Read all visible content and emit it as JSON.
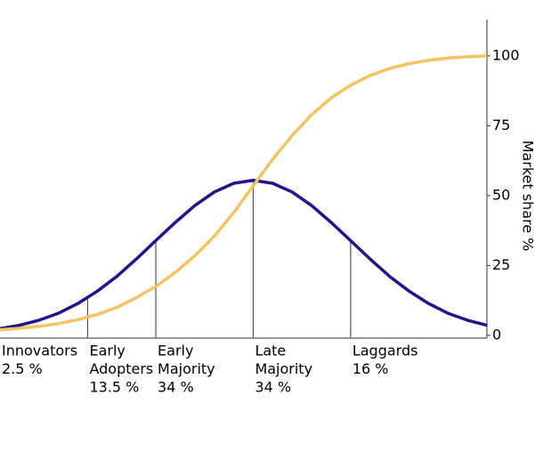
{
  "chart_data": {
    "type": "line",
    "y_label": "Market share %",
    "x": [
      -2.6,
      -2.4,
      -2.2,
      -2.0,
      -1.8,
      -1.6,
      -1.4,
      -1.2,
      -1.0,
      -0.8,
      -0.6,
      -0.4,
      -0.2,
      0,
      0.2,
      0.4,
      0.6,
      0.8,
      1.0,
      1.2,
      1.4,
      1.6,
      1.8,
      2.0,
      2.2,
      2.4
    ],
    "xlim": [
      -2.6,
      2.4
    ],
    "series": [
      {
        "color": "#23138f",
        "values": [
          2.4,
          3.6,
          5.4,
          7.9,
          11.4,
          15.8,
          21.1,
          27.3,
          33.9,
          40.4,
          46.4,
          51.3,
          54.4,
          55.5,
          54.4,
          51.3,
          46.4,
          40.4,
          33.9,
          27.3,
          21.1,
          15.8,
          11.4,
          7.9,
          5.4,
          3.6
        ]
      },
      {
        "color": "#f3c461",
        "values": [
          2,
          2.5,
          3.2,
          4.2,
          5.6,
          7.5,
          10,
          13.5,
          17.5,
          22.5,
          28.5,
          35.5,
          44,
          53.5,
          63,
          71.5,
          79,
          85,
          89.5,
          93,
          95.5,
          97.2,
          98.4,
          99.2,
          99.7,
          100
        ]
      }
    ],
    "ylim": [
      -1,
      113
    ],
    "yticks": [
      0,
      25,
      50,
      75,
      100
    ],
    "dividers": [
      -1.7,
      -1,
      0,
      1
    ],
    "segments": [
      {
        "label": [
          "Innovators"
        ],
        "share": "2.5 %"
      },
      {
        "label": [
          "Early",
          "Adopters"
        ],
        "share": "13.5 %"
      },
      {
        "label": [
          "Early",
          "Majority"
        ],
        "share": "34 %"
      },
      {
        "label": [
          "Late",
          "Majority"
        ],
        "share": "34 %"
      },
      {
        "label": [
          "Laggards"
        ],
        "share": "16 %"
      }
    ]
  }
}
